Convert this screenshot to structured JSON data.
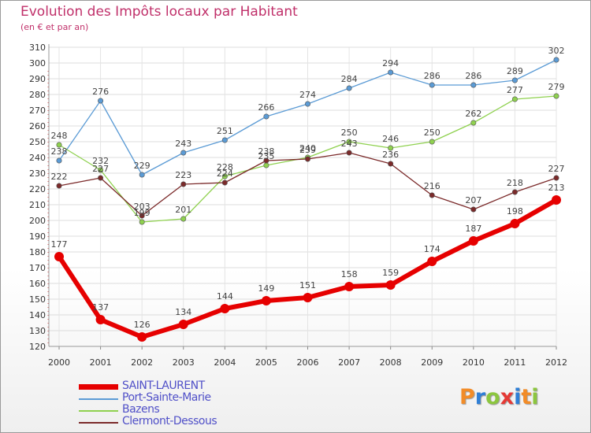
{
  "header": {
    "title": "Evolution des Impôts locaux par Habitant",
    "subtitle": "(en € et par an)"
  },
  "logo": {
    "text": "Proxiti",
    "letters": [
      {
        "ch": "P",
        "color": "#f28c28"
      },
      {
        "ch": "r",
        "color": "#2f7fd6"
      },
      {
        "ch": "o",
        "color": "#8cc63f"
      },
      {
        "ch": "x",
        "color": "#e53935"
      },
      {
        "ch": "i",
        "color": "#2f7fd6"
      },
      {
        "ch": "t",
        "color": "#f28c28"
      },
      {
        "ch": "i",
        "color": "#8cc63f"
      }
    ]
  },
  "chart_data": {
    "type": "line",
    "title": "Evolution des Impôts locaux par Habitant",
    "subtitle": "(en € et par an)",
    "xlabel": "",
    "ylabel": "",
    "x": [
      "2000",
      "2001",
      "2002",
      "2003",
      "2004",
      "2005",
      "2006",
      "2007",
      "2008",
      "2009",
      "2010",
      "2011",
      "2012"
    ],
    "ylim": [
      120,
      310
    ],
    "yticks": [
      120,
      130,
      140,
      150,
      160,
      170,
      180,
      190,
      200,
      210,
      220,
      230,
      240,
      250,
      260,
      270,
      280,
      290,
      300,
      310
    ],
    "grid": true,
    "legend_position": "bottom-left",
    "series": [
      {
        "name": "SAINT-LAURENT",
        "color": "#e60000",
        "values": [
          177,
          137,
          126,
          134,
          144,
          149,
          151,
          158,
          159,
          174,
          187,
          198,
          213
        ],
        "labels": [
          "177",
          "137",
          "126",
          "134",
          "144",
          "149",
          "151",
          "158",
          "159",
          "174",
          "187",
          "198",
          "213"
        ]
      },
      {
        "name": "Port-Sainte-Marie",
        "color": "#5b9bd5",
        "values": [
          238,
          276,
          229,
          243,
          251,
          266,
          274,
          284,
          294,
          286,
          286,
          289,
          302
        ],
        "labels": [
          "238",
          "276",
          "229",
          "243",
          "251",
          "266",
          "274",
          "284",
          "294",
          "286",
          "286",
          "289",
          "302"
        ]
      },
      {
        "name": "Bazens",
        "color": "#8fd14f",
        "values": [
          248,
          232,
          199,
          201,
          228,
          235,
          240,
          250,
          246,
          250,
          262,
          277,
          279
        ],
        "labels": [
          "248",
          "232",
          "199",
          "201",
          "228",
          "235",
          "240",
          "250",
          "246",
          "250",
          "262",
          "277",
          "279"
        ]
      },
      {
        "name": "Clermont-Dessous",
        "color": "#7b2a2a",
        "values": [
          222,
          227,
          203,
          223,
          224,
          238,
          239,
          243,
          236,
          216,
          207,
          218,
          227
        ],
        "labels": [
          "222",
          "227",
          "203",
          "223",
          "224",
          "238",
          "239",
          "243",
          "236",
          "216",
          "207",
          "218",
          "227"
        ]
      }
    ]
  }
}
